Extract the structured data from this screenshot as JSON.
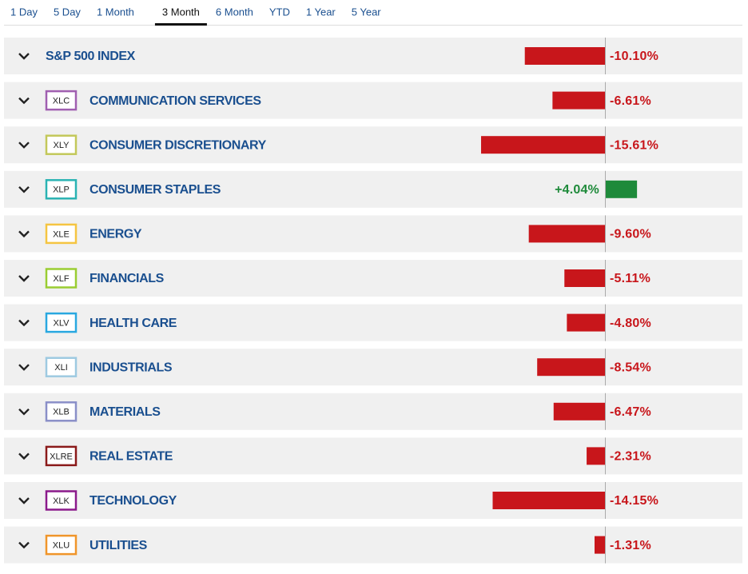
{
  "tabs": [
    "1 Day",
    "5 Day",
    "1 Month",
    "3 Month",
    "6 Month",
    "YTD",
    "1 Year",
    "5 Year"
  ],
  "active_tab": 3,
  "negative_color": "#c8161b",
  "positive_color": "#1e8a3a",
  "rows": [
    {
      "name": "S&P 500 INDEX",
      "value": -10.1,
      "value_label": "-10.10%"
    },
    {
      "ticker": "XLC",
      "color": "#a05fb0",
      "name": "COMMUNICATION SERVICES",
      "value": -6.61,
      "value_label": "-6.61%"
    },
    {
      "ticker": "XLY",
      "color": "#c3c85a",
      "name": "CONSUMER DISCRETIONARY",
      "value": -15.61,
      "value_label": "-15.61%"
    },
    {
      "ticker": "XLP",
      "color": "#2ab3b3",
      "name": "CONSUMER STAPLES",
      "value": 4.04,
      "value_label": "+4.04%"
    },
    {
      "ticker": "XLE",
      "color": "#f5c542",
      "name": "ENERGY",
      "value": -9.6,
      "value_label": "-9.60%"
    },
    {
      "ticker": "XLF",
      "color": "#9acd32",
      "name": "FINANCIALS",
      "value": -5.11,
      "value_label": "-5.11%"
    },
    {
      "ticker": "XLV",
      "color": "#29a8e0",
      "name": "HEALTH CARE",
      "value": -4.8,
      "value_label": "-4.80%"
    },
    {
      "ticker": "XLI",
      "color": "#9ecae1",
      "name": "INDUSTRIALS",
      "value": -8.54,
      "value_label": "-8.54%"
    },
    {
      "ticker": "XLB",
      "color": "#8a8fc8",
      "name": "MATERIALS",
      "value": -6.47,
      "value_label": "-6.47%"
    },
    {
      "ticker": "XLRE",
      "color": "#8b1a1a",
      "name": "REAL ESTATE",
      "value": -2.31,
      "value_label": "-2.31%"
    },
    {
      "ticker": "XLK",
      "color": "#8b1a8b",
      "name": "TECHNOLOGY",
      "value": -14.15,
      "value_label": "-14.15%"
    },
    {
      "ticker": "XLU",
      "color": "#f0952a",
      "name": "UTILITIES",
      "value": -1.31,
      "value_label": "-1.31%"
    }
  ]
}
